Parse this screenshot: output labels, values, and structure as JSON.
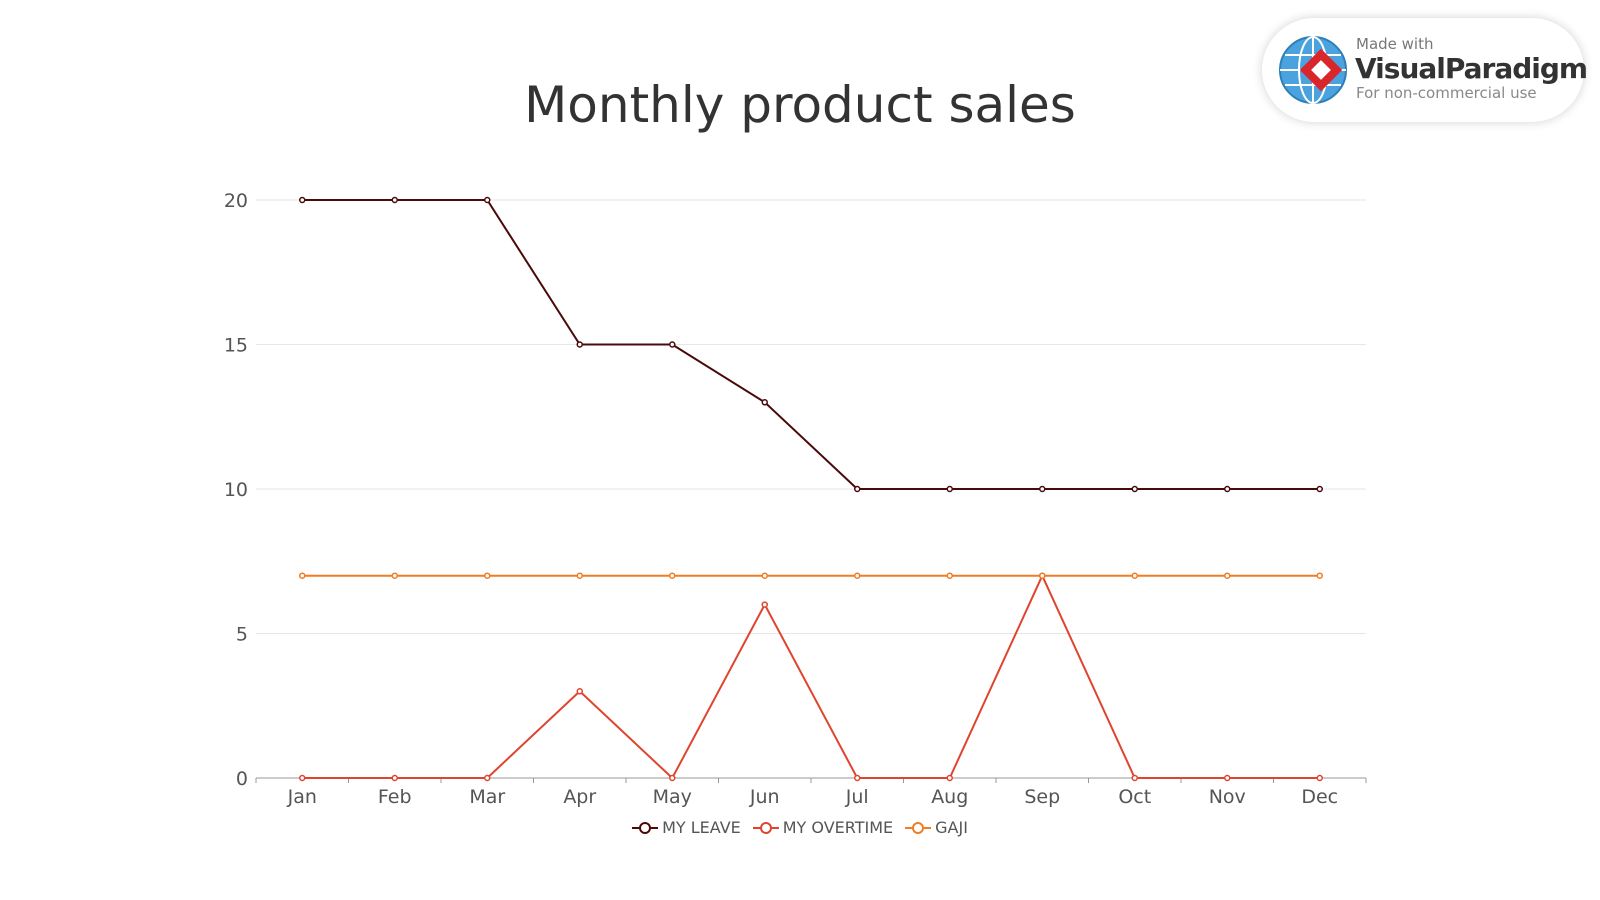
{
  "badge": {
    "line1": "Made with",
    "brand": "VisualParadigm",
    "line3": "For non-commercial use"
  },
  "chart_data": {
    "type": "line",
    "title": "Monthly product sales",
    "xlabel": "",
    "ylabel": "",
    "ylim": [
      0,
      20
    ],
    "yticks": [
      0,
      5,
      10,
      15,
      20
    ],
    "grid": true,
    "legend_position": "bottom-center",
    "categories": [
      "Jan",
      "Feb",
      "Mar",
      "Apr",
      "May",
      "Jun",
      "Jul",
      "Aug",
      "Sep",
      "Oct",
      "Nov",
      "Dec"
    ],
    "series": [
      {
        "name": "MY LEAVE",
        "color": "#4a0a0a",
        "values": [
          20,
          20,
          20,
          15,
          15,
          13,
          10,
          10,
          10,
          10,
          10,
          10
        ]
      },
      {
        "name": "MY OVERTIME",
        "color": "#e0442e",
        "values": [
          0,
          0,
          0,
          3,
          0,
          6,
          0,
          0,
          7,
          0,
          0,
          0
        ]
      },
      {
        "name": "GAJI",
        "color": "#f07d22",
        "values": [
          7,
          7,
          7,
          7,
          7,
          7,
          7,
          7,
          7,
          7,
          7,
          7
        ]
      }
    ]
  }
}
